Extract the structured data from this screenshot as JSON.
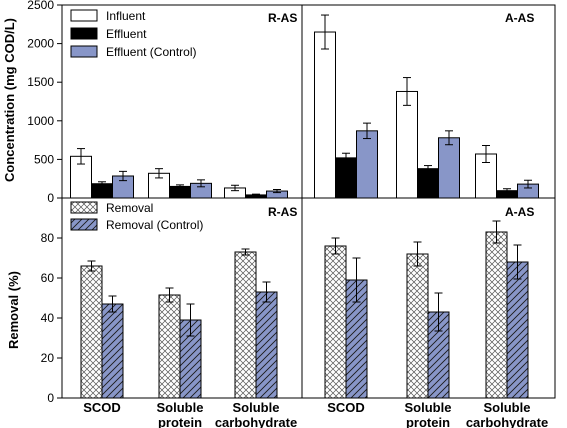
{
  "chart_data": [
    {
      "type": "bar",
      "ylabel": "Concentration (mg COD/L)",
      "ylim": [
        0,
        2500
      ],
      "yticks": [
        0,
        500,
        1000,
        1500,
        2000,
        2500
      ],
      "categories": [
        "SCOD",
        "Soluble protein",
        "Soluble carbohydrate"
      ],
      "legend_placement": "top-left",
      "panels": [
        {
          "title": "R-AS",
          "series": [
            {
              "name": "Influent",
              "color": "#ffffff",
              "values": [
                540,
                320,
                130
              ],
              "errors": [
                100,
                60,
                35
              ]
            },
            {
              "name": "Effluent",
              "color": "#000000",
              "values": [
                185,
                150,
                40
              ],
              "errors": [
                25,
                20,
                10
              ]
            },
            {
              "name": "Effluent (Control)",
              "color": "#8896c8",
              "values": [
                285,
                190,
                90
              ],
              "errors": [
                60,
                45,
                20
              ]
            }
          ]
        },
        {
          "title": "A-AS",
          "series": [
            {
              "name": "Influent",
              "color": "#ffffff",
              "values": [
                2150,
                1380,
                570
              ],
              "errors": [
                220,
                180,
                110
              ]
            },
            {
              "name": "Effluent",
              "color": "#000000",
              "values": [
                520,
                380,
                95
              ],
              "errors": [
                60,
                40,
                25
              ]
            },
            {
              "name": "Effluent (Control)",
              "color": "#8896c8",
              "values": [
                870,
                780,
                180
              ],
              "errors": [
                100,
                90,
                50
              ]
            }
          ]
        }
      ]
    },
    {
      "type": "bar",
      "ylabel": "Removal (%)",
      "ylim": [
        0,
        100
      ],
      "yticks": [
        0,
        20,
        40,
        60,
        80
      ],
      "categories": [
        "SCOD",
        "Soluble protein",
        "Soluble carbohydrate"
      ],
      "legend_placement": "top-left",
      "panels": [
        {
          "title": "R-AS",
          "series": [
            {
              "name": "Removal",
              "pattern": "crosshatch",
              "values": [
                66,
                51.5,
                73
              ],
              "errors": [
                2.5,
                3.5,
                1.5
              ]
            },
            {
              "name": "Removal (Control)",
              "pattern": "diagonal-blue",
              "color": "#8896c8",
              "values": [
                47,
                39,
                53
              ],
              "errors": [
                4,
                8,
                5
              ]
            }
          ]
        },
        {
          "title": "A-AS",
          "series": [
            {
              "name": "Removal",
              "pattern": "crosshatch",
              "values": [
                76,
                72,
                83
              ],
              "errors": [
                4,
                6,
                5.5
              ]
            },
            {
              "name": "Removal (Control)",
              "pattern": "diagonal-blue",
              "color": "#8896c8",
              "values": [
                59,
                43,
                68
              ],
              "errors": [
                11,
                9.5,
                8.5
              ]
            }
          ]
        }
      ]
    }
  ],
  "x_category_labels": [
    [
      "SCOD"
    ],
    [
      "Soluble",
      "protein"
    ],
    [
      "Soluble",
      "carbohydrate"
    ],
    [
      "SCOD"
    ],
    [
      "Soluble",
      "protein"
    ],
    [
      "Soluble",
      "carbohydrate"
    ]
  ]
}
